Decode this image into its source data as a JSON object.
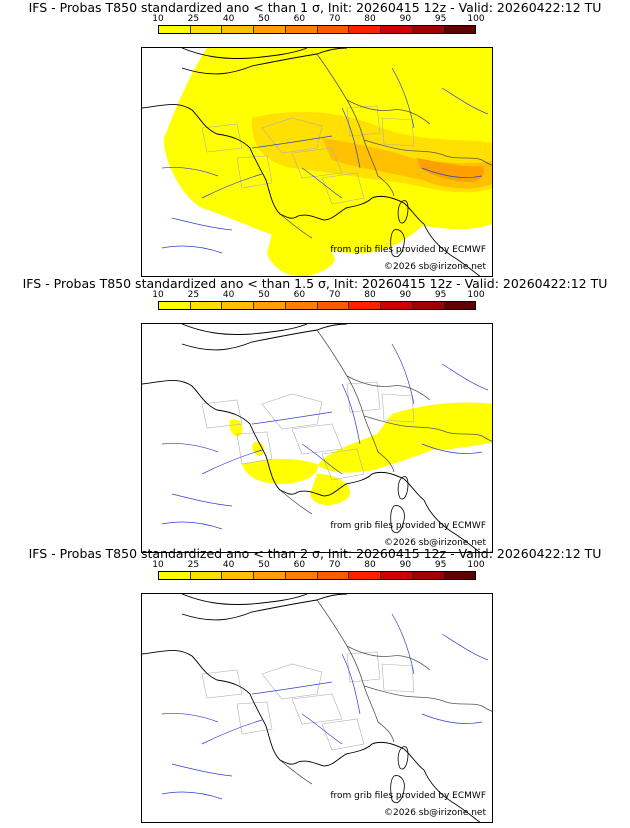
{
  "panels": [
    {
      "title": "IFS - Probas T850  standardized ano < than 1 σ, Init: 20260415 12z - Valid: 20260422:12 TU",
      "coverage": "high"
    },
    {
      "title": "IFS - Probas T850  standardized ano < than 1.5 σ, Init: 20260415 12z - Valid: 20260422:12 TU",
      "coverage": "medium"
    },
    {
      "title": "IFS - Probas T850  standardized ano < than 2 σ, Init: 20260415 12z - Valid: 20260422:12 TU",
      "coverage": "none"
    }
  ],
  "scale": {
    "labels": [
      "10",
      "25",
      "40",
      "50",
      "60",
      "70",
      "80",
      "90",
      "95",
      "100"
    ],
    "colors": [
      "#ffff00",
      "#ffe000",
      "#ffc000",
      "#ffa000",
      "#ff8000",
      "#ff5a00",
      "#ff2000",
      "#d00000",
      "#a00000",
      "#600000"
    ]
  },
  "credits": {
    "source": "from grib files provided by ECMWF",
    "copyright": "©2026 sb@irizone.net"
  }
}
